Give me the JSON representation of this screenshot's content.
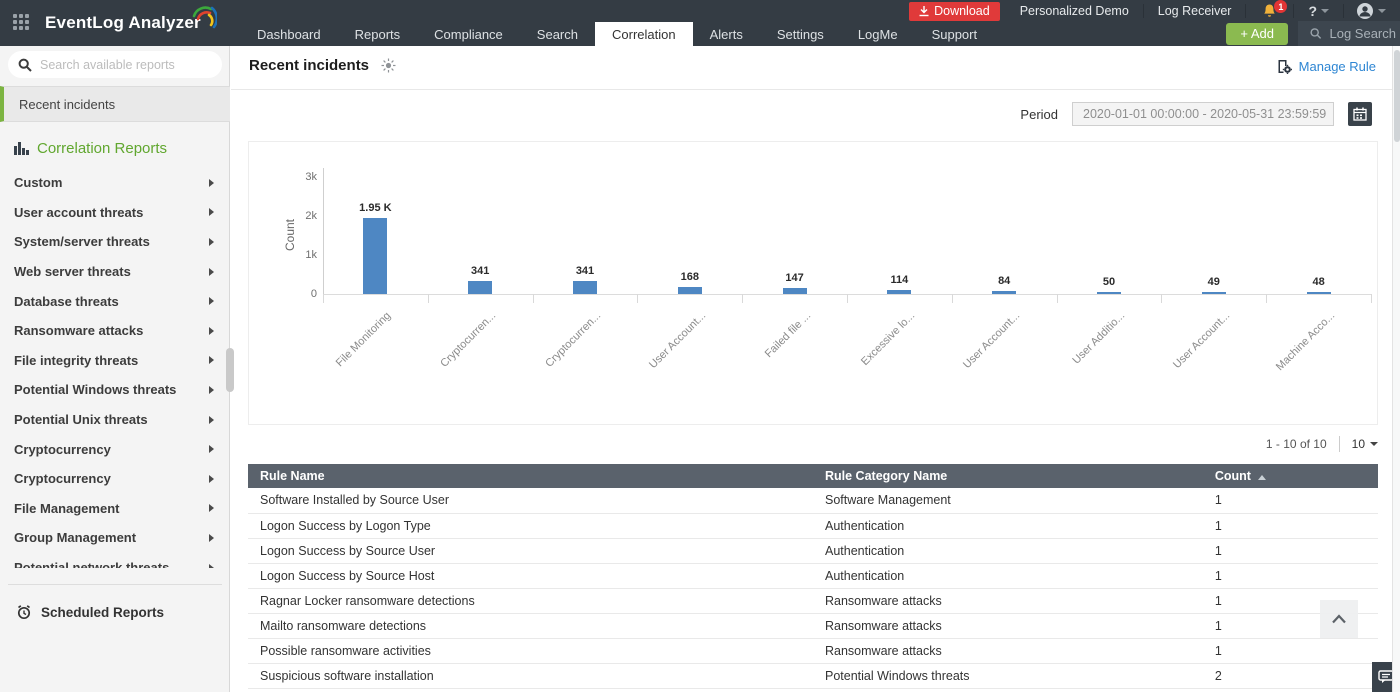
{
  "topbar": {
    "brand": "EventLog Analyzer",
    "nav": [
      {
        "label": "Dashboard",
        "active": false
      },
      {
        "label": "Reports",
        "active": false
      },
      {
        "label": "Compliance",
        "active": false
      },
      {
        "label": "Search",
        "active": false
      },
      {
        "label": "Correlation",
        "active": true
      },
      {
        "label": "Alerts",
        "active": false
      },
      {
        "label": "Settings",
        "active": false
      },
      {
        "label": "LogMe",
        "active": false
      },
      {
        "label": "Support",
        "active": false
      }
    ],
    "download_label": "Download",
    "personalized_demo_label": "Personalized Demo",
    "log_receiver_label": "Log Receiver",
    "notification_count": "1",
    "help_label": "?",
    "add_button_label": "+ Add",
    "log_search_placeholder": "Log Search"
  },
  "sidebar": {
    "search_placeholder": "Search available reports",
    "selected_item": "Recent incidents",
    "section_title": "Correlation Reports",
    "items": [
      "Custom",
      "User account threats",
      "System/server threats",
      "Web server threats",
      "Database threats",
      "Ransomware attacks",
      "File integrity threats",
      "Potential Windows threats",
      "Potential Unix threats",
      "Cryptocurrency",
      "Cryptocurrency",
      "File Management",
      "Group Management",
      "Potential network threats"
    ],
    "scheduled_reports_label": "Scheduled Reports"
  },
  "main": {
    "title": "Recent incidents",
    "manage_rule_label": "Manage Rule",
    "period_label": "Period",
    "period_value": "2020-01-01 00:00:00 - 2020-05-31 23:59:59",
    "pagination": {
      "range": "1 - 10 of 10",
      "page_size": "10"
    },
    "table": {
      "columns": [
        "Rule Name",
        "Rule Category Name",
        "Count"
      ],
      "sort_column": "Count",
      "sort_direction": "asc",
      "rows": [
        [
          "Software Installed by Source User",
          "Software Management",
          "1"
        ],
        [
          "Logon Success by Logon Type",
          "Authentication",
          "1"
        ],
        [
          "Logon Success by Source User",
          "Authentication",
          "1"
        ],
        [
          "Logon Success by Source Host",
          "Authentication",
          "1"
        ],
        [
          "Ragnar Locker ransomware detections",
          "Ransomware attacks",
          "1"
        ],
        [
          "Mailto ransomware detections",
          "Ransomware attacks",
          "1"
        ],
        [
          "Possible ransomware activities",
          "Ransomware attacks",
          "1"
        ],
        [
          "Suspicious software installation",
          "Potential Windows threats",
          "2"
        ]
      ]
    }
  },
  "chart_data": {
    "type": "bar",
    "title": "",
    "categories": [
      "File Monitoring",
      "Cryptocurren...",
      "Cryptocurren...",
      "User Account...",
      "Failed file ...",
      "Excessive lo...",
      "User Account...",
      "User Additio...",
      "User Account...",
      "Machine Acco..."
    ],
    "values": [
      1950,
      341,
      341,
      168,
      147,
      114,
      84,
      50,
      49,
      48
    ],
    "value_labels": [
      "1.95 K",
      "341",
      "341",
      "168",
      "147",
      "114",
      "84",
      "50",
      "49",
      "48"
    ],
    "xlabel": "",
    "ylabel": "Count",
    "yticks": [
      {
        "value": 0,
        "label": "0"
      },
      {
        "value": 1000,
        "label": "1k"
      },
      {
        "value": 2000,
        "label": "2k"
      },
      {
        "value": 3000,
        "label": "3k"
      }
    ],
    "ylim": [
      0,
      3000
    ],
    "bar_color": "#4e87c3",
    "grid": false,
    "legend": false
  },
  "colors": {
    "topbar_bg": "#343c44",
    "download_red": "#e03a3a",
    "add_green": "#8bba50",
    "sidebar_accent_green": "#7cb441",
    "section_green": "#61a72f",
    "link_blue": "#2e86d3",
    "bar_blue": "#4e87c3",
    "table_header_bg": "#5a626c",
    "bell_yellow": "#f0b13a"
  }
}
